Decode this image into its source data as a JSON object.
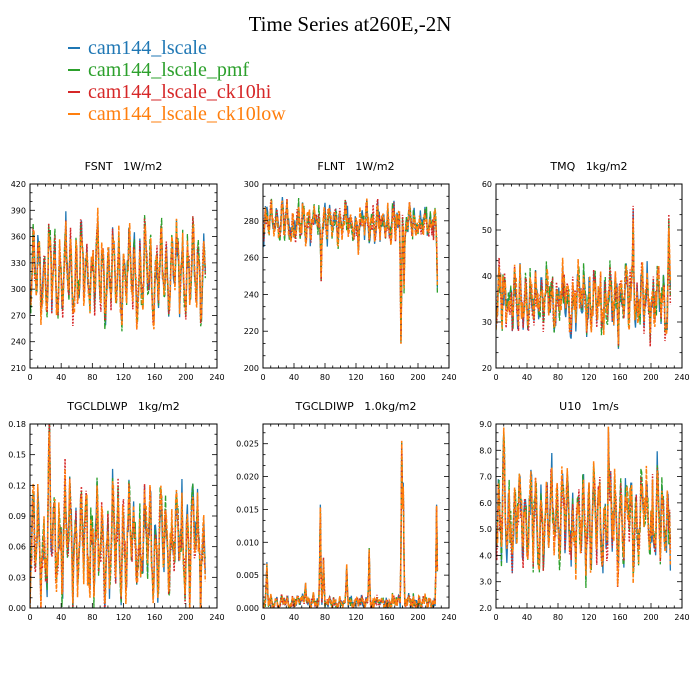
{
  "figure": {
    "title": "Time Series at260E,-2N"
  },
  "legend": [
    {
      "name": "cam144_lscale",
      "color": "#1f77b4"
    },
    {
      "name": "cam144_lscale_pmf",
      "color": "#2ca02c"
    },
    {
      "name": "cam144_lscale_ck10hi",
      "color": "#d62728"
    },
    {
      "name": "cam144_lscale_ck10low",
      "color": "#ff7f0e"
    }
  ],
  "chart_data": [
    {
      "type": "line",
      "title": "FSNT   1W/m2",
      "xlim": [
        0,
        240
      ],
      "xticks": [
        0,
        40,
        80,
        120,
        160,
        200,
        240
      ],
      "ylim": [
        210,
        420
      ],
      "yticks": [
        210,
        240,
        270,
        300,
        330,
        360,
        390,
        420
      ],
      "ytick_labels": [
        "210",
        "240",
        "270",
        "300",
        "330",
        "360",
        "390",
        "420"
      ],
      "series_names": [
        "cam144_lscale",
        "cam144_lscale_pmf",
        "cam144_lscale_ck10hi",
        "cam144_lscale_ck10low"
      ],
      "n_points": 226,
      "profile": {
        "base": 318,
        "amp": 55,
        "noise": 12,
        "spikes": []
      }
    },
    {
      "type": "line",
      "title": "FLNT   1W/m2",
      "xlim": [
        0,
        240
      ],
      "xticks": [
        0,
        40,
        80,
        120,
        160,
        200,
        240
      ],
      "ylim": [
        200,
        300
      ],
      "yticks": [
        200,
        220,
        240,
        260,
        280,
        300
      ],
      "ytick_labels": [
        "200",
        "220",
        "240",
        "260",
        "280",
        "300"
      ],
      "series_names": [
        "cam144_lscale",
        "cam144_lscale_pmf",
        "cam144_lscale_ck10hi",
        "cam144_lscale_ck10low"
      ],
      "n_points": 226,
      "profile": {
        "base": 279,
        "amp": 8,
        "noise": 5,
        "spikes": [
          [
            75,
            -22
          ],
          [
            123,
            -18
          ],
          [
            178,
            -60
          ],
          [
            182,
            -35
          ],
          [
            225,
            -30
          ]
        ]
      }
    },
    {
      "type": "line",
      "title": "TMQ   1kg/m2",
      "xlim": [
        0,
        240
      ],
      "xticks": [
        0,
        40,
        80,
        120,
        160,
        200,
        240
      ],
      "ylim": [
        20,
        60
      ],
      "yticks": [
        20,
        30,
        40,
        50,
        60
      ],
      "ytick_labels": [
        "20",
        "30",
        "40",
        "50",
        "60"
      ],
      "series_names": [
        "cam144_lscale",
        "cam144_lscale_pmf",
        "cam144_lscale_ck10hi",
        "cam144_lscale_ck10low"
      ],
      "n_points": 226,
      "profile": {
        "base": 35,
        "amp": 6,
        "noise": 3,
        "spikes": [
          [
            177,
            22
          ],
          [
            223,
            17
          ]
        ]
      }
    },
    {
      "type": "line",
      "title": "TGCLDLWP   1kg/m2",
      "xlim": [
        0,
        240
      ],
      "xticks": [
        0,
        40,
        80,
        120,
        160,
        200,
        240
      ],
      "ylim": [
        0,
        0.18
      ],
      "yticks": [
        0,
        0.03,
        0.06,
        0.09,
        0.12,
        0.15,
        0.18
      ],
      "ytick_labels": [
        "0.00",
        "0.03",
        "0.06",
        "0.09",
        "0.12",
        "0.15",
        "0.18"
      ],
      "series_names": [
        "cam144_lscale",
        "cam144_lscale_pmf",
        "cam144_lscale_ck10hi",
        "cam144_lscale_ck10low"
      ],
      "n_points": 226,
      "profile": {
        "base": 0.065,
        "amp": 0.055,
        "noise": 0.015,
        "spikes": [
          [
            25,
            0.095
          ]
        ]
      }
    },
    {
      "type": "line",
      "title": "TGCLDIWP   1.0kg/m2",
      "xlim": [
        0,
        240
      ],
      "xticks": [
        0,
        40,
        80,
        120,
        160,
        200,
        240
      ],
      "ylim": [
        0,
        0.028
      ],
      "yticks": [
        0,
        0.005,
        0.01,
        0.015,
        0.02,
        0.025
      ],
      "ytick_labels": [
        "0.000",
        "0.005",
        "0.010",
        "0.015",
        "0.020",
        "0.025"
      ],
      "series_names": [
        "cam144_lscale",
        "cam144_lscale_pmf",
        "cam144_lscale_ck10hi",
        "cam144_lscale_ck10low"
      ],
      "n_points": 226,
      "profile": {
        "base": 0.0008,
        "amp": 0.0006,
        "noise": 0.0006,
        "floor": 0,
        "spikes": [
          [
            5,
            0.005
          ],
          [
            55,
            0.003
          ],
          [
            74,
            0.014
          ],
          [
            78,
            0.006
          ],
          [
            108,
            0.006
          ],
          [
            137,
            0.008
          ],
          [
            179,
            0.025
          ],
          [
            181,
            0.018
          ],
          [
            224,
            0.015
          ]
        ]
      }
    },
    {
      "type": "line",
      "title": "U10   1m/s",
      "xlim": [
        0,
        240
      ],
      "xticks": [
        0,
        40,
        80,
        120,
        160,
        200,
        240
      ],
      "ylim": [
        2,
        9
      ],
      "yticks": [
        2,
        3,
        4,
        5,
        6,
        7,
        8,
        9
      ],
      "ytick_labels": [
        "2.0",
        "3.0",
        "4.0",
        "5.0",
        "6.0",
        "7.0",
        "8.0",
        "9.0"
      ],
      "series_names": [
        "cam144_lscale",
        "cam144_lscale_pmf",
        "cam144_lscale_ck10hi",
        "cam144_lscale_ck10low"
      ],
      "n_points": 226,
      "profile": {
        "base": 5.4,
        "amp": 1.8,
        "noise": 0.6,
        "spikes": [
          [
            10,
            2.5
          ],
          [
            145,
            3.0
          ]
        ]
      }
    }
  ]
}
